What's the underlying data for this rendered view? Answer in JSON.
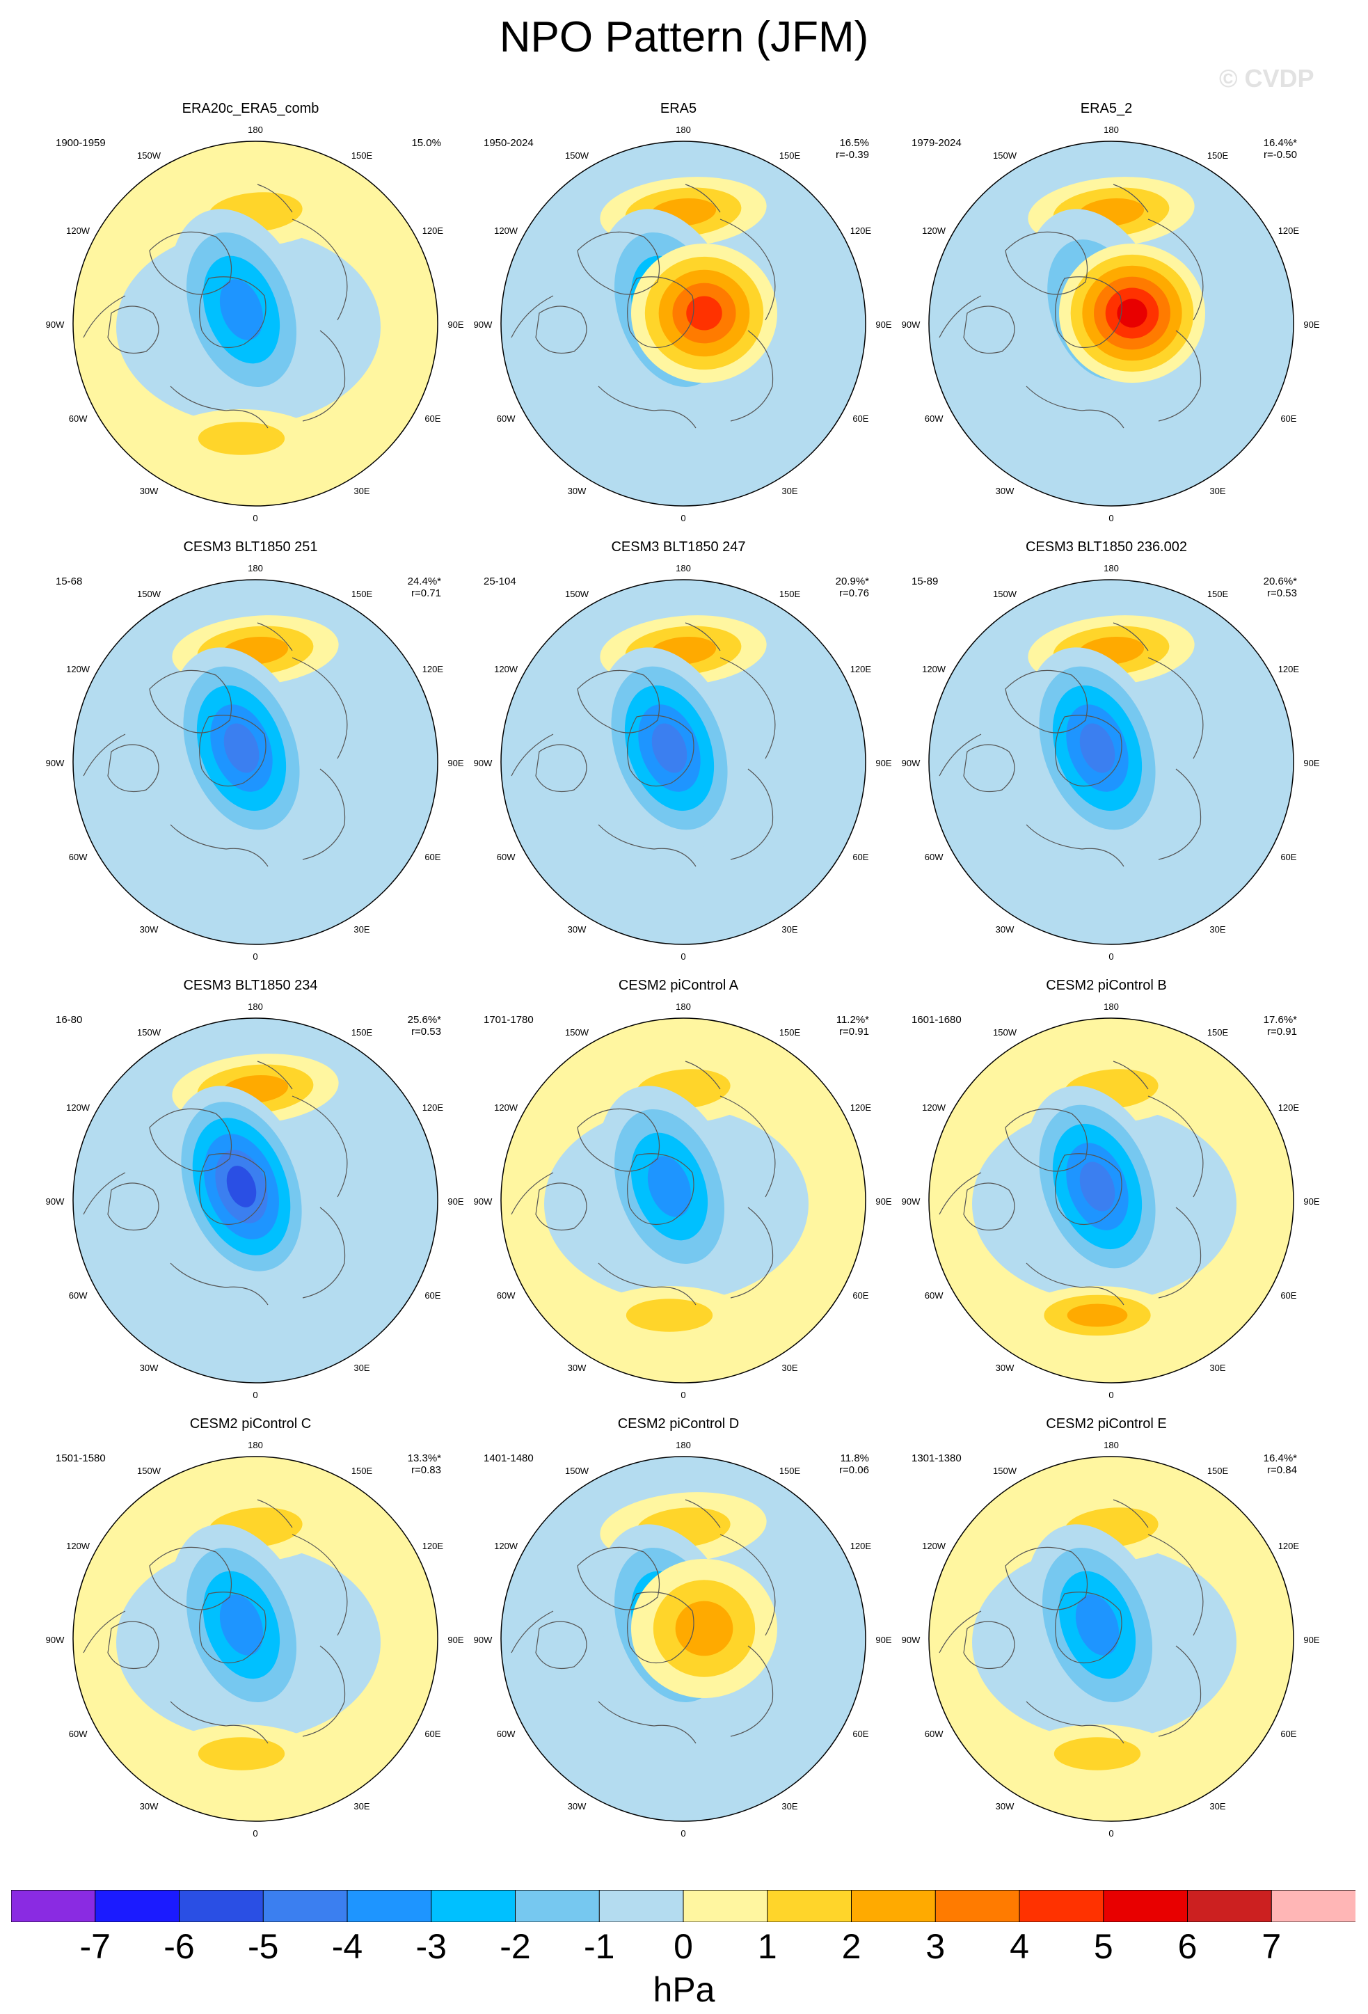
{
  "title": "NPO Pattern (JFM)",
  "watermark": "© CVDP",
  "units": "hPa",
  "colorbar": {
    "ticks": [
      "-7",
      "-6",
      "-5",
      "-4",
      "-3",
      "-2",
      "-1",
      "0",
      "1",
      "2",
      "3",
      "4",
      "5",
      "6",
      "7"
    ],
    "colors": [
      "#8a2be2",
      "#1b1bff",
      "#2a4fe4",
      "#3b7ff0",
      "#1e95ff",
      "#00c0ff",
      "#76c8f0",
      "#b4dcf0",
      "#fff6a0",
      "#ffd52a",
      "#ffaa00",
      "#ff7b00",
      "#ff3200",
      "#e80000",
      "#cc2020",
      "#ffb6b6"
    ]
  },
  "axis_labels": {
    "top": "180",
    "bottom": "0",
    "left_upper": "120W",
    "left_mid": "90W",
    "left_lower": "60W",
    "right_upper": "120E",
    "right_mid": "90E",
    "right_lower": "60E",
    "tl": "150W",
    "tr": "150E",
    "bl": "30W",
    "br": "30E"
  },
  "chart_data": [
    {
      "type": "heatmap",
      "title": "ERA20c_ERA5_comb",
      "years": "1900-1959",
      "pct": "15.0%",
      "corr": "",
      "pattern": {
        "pacific_high": 1.5,
        "arctic_low": -3.5,
        "europe_high": 2.0,
        "siberia_high": 0,
        "bg": 1
      }
    },
    {
      "type": "heatmap",
      "title": "ERA5",
      "years": "1950-2024",
      "pct": "16.5%",
      "corr": "r=-0.39",
      "pattern": {
        "pacific_high": 2.5,
        "arctic_low": -3.5,
        "europe_high": 0,
        "siberia_high": 5.0,
        "bg": -1
      }
    },
    {
      "type": "heatmap",
      "title": "ERA5_2",
      "years": "1979-2024",
      "pct": "16.4%*",
      "corr": "r=-0.50",
      "pattern": {
        "pacific_high": 2.5,
        "arctic_low": -3.0,
        "europe_high": 0,
        "siberia_high": 6.0,
        "bg": -1
      }
    },
    {
      "type": "heatmap",
      "title": "CESM3 BLT1850 251",
      "years": "15-68",
      "pct": "24.4%*",
      "corr": "r=0.71",
      "pattern": {
        "pacific_high": 3.0,
        "arctic_low": -5.0,
        "europe_high": 0,
        "siberia_high": 0,
        "bg": -1
      }
    },
    {
      "type": "heatmap",
      "title": "CESM3 BLT1850 247",
      "years": "25-104",
      "pct": "20.9%*",
      "corr": "r=0.76",
      "pattern": {
        "pacific_high": 3.0,
        "arctic_low": -4.5,
        "europe_high": 0,
        "siberia_high": 0,
        "bg": -1
      }
    },
    {
      "type": "heatmap",
      "title": "CESM3 BLT1850 236.002",
      "years": "15-89",
      "pct": "20.6%*",
      "corr": "r=0.53",
      "pattern": {
        "pacific_high": 3.0,
        "arctic_low": -4.5,
        "europe_high": 0,
        "siberia_high": 0,
        "bg": -1
      }
    },
    {
      "type": "heatmap",
      "title": "CESM3 BLT1850 234",
      "years": "16-80",
      "pct": "25.6%*",
      "corr": "r=0.53",
      "pattern": {
        "pacific_high": 3.0,
        "arctic_low": -6.0,
        "europe_high": 0,
        "siberia_high": 0,
        "bg": -1
      }
    },
    {
      "type": "heatmap",
      "title": "CESM2 piControl A",
      "years": "1701-1780",
      "pct": "11.2%*",
      "corr": "r=0.91",
      "pattern": {
        "pacific_high": 1.5,
        "arctic_low": -3.5,
        "europe_high": 2.0,
        "siberia_high": 0,
        "bg": 1
      }
    },
    {
      "type": "heatmap",
      "title": "CESM2 piControl B",
      "years": "1601-1680",
      "pct": "17.6%*",
      "corr": "r=0.91",
      "pattern": {
        "pacific_high": 1.5,
        "arctic_low": -5.0,
        "europe_high": 2.5,
        "siberia_high": 0,
        "bg": 1
      }
    },
    {
      "type": "heatmap",
      "title": "CESM2 piControl C",
      "years": "1501-1580",
      "pct": "13.3%*",
      "corr": "r=0.83",
      "pattern": {
        "pacific_high": 1.5,
        "arctic_low": -3.5,
        "europe_high": 2.0,
        "siberia_high": 0,
        "bg": 1
      }
    },
    {
      "type": "heatmap",
      "title": "CESM2 piControl D",
      "years": "1401-1480",
      "pct": "11.8%",
      "corr": "r=0.06",
      "pattern": {
        "pacific_high": 2.0,
        "arctic_low": -3.5,
        "europe_high": 0,
        "siberia_high": 2.5,
        "bg": -1
      }
    },
    {
      "type": "heatmap",
      "title": "CESM2 piControl E",
      "years": "1301-1380",
      "pct": "16.4%*",
      "corr": "r=0.84",
      "pattern": {
        "pacific_high": 1.5,
        "arctic_low": -3.5,
        "europe_high": 1.5,
        "siberia_high": 0,
        "bg": 1
      }
    }
  ]
}
